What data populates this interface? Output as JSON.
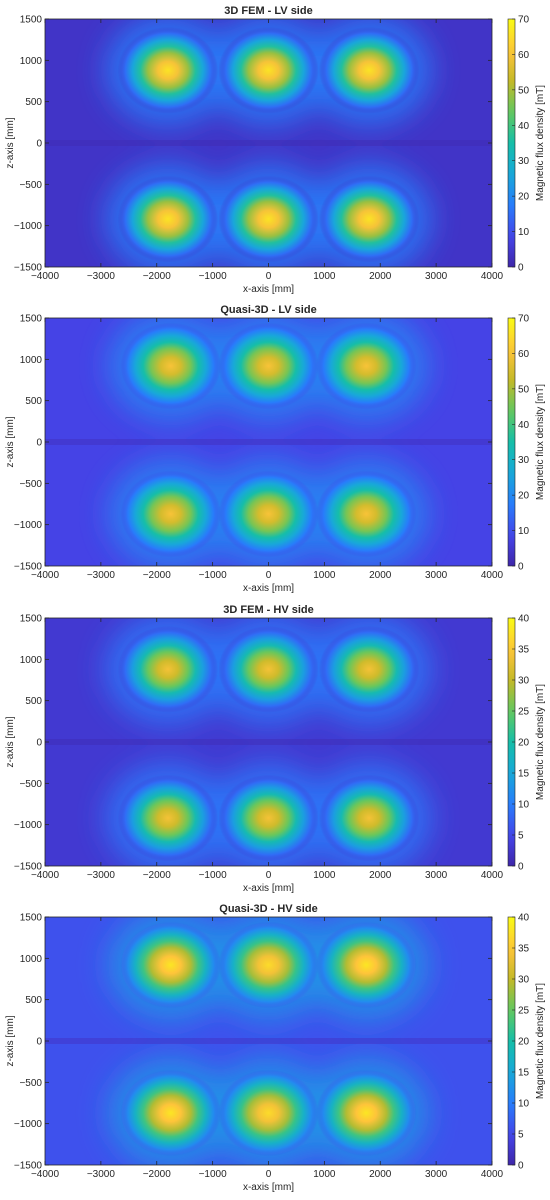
{
  "chart_data": [
    {
      "type": "heatmap",
      "title": "3D FEM - LV side",
      "xlabel": "x-axis [mm]",
      "ylabel": "z-axis [mm]",
      "xlim": [
        -4000,
        4000
      ],
      "ylim": [
        -1500,
        1500
      ],
      "xticks": [
        -4000,
        -3000,
        -2000,
        -1000,
        0,
        1000,
        2000,
        3000,
        4000
      ],
      "yticks": [
        -1500,
        -1000,
        -500,
        0,
        500,
        1000,
        1500
      ],
      "colorbar": {
        "label": "Magnetic flux density [mT]",
        "min": 0,
        "max": 70,
        "ticks": [
          0,
          10,
          20,
          30,
          40,
          50,
          60,
          70
        ]
      },
      "colormap": "parula",
      "hotspots": [
        {
          "x": -1800,
          "z": 880,
          "peak": 66
        },
        {
          "x": 0,
          "z": 880,
          "peak": 66
        },
        {
          "x": 1800,
          "z": 880,
          "peak": 66
        },
        {
          "x": -1800,
          "z": -920,
          "peak": 66
        },
        {
          "x": 0,
          "z": -920,
          "peak": 66
        },
        {
          "x": 1800,
          "z": -920,
          "peak": 66
        }
      ],
      "background_value": 4
    },
    {
      "type": "heatmap",
      "title": "Quasi-3D - LV side",
      "xlabel": "x-axis [mm]",
      "ylabel": "z-axis [mm]",
      "xlim": [
        -4000,
        4000
      ],
      "ylim": [
        -1500,
        1500
      ],
      "xticks": [
        -4000,
        -3000,
        -2000,
        -1000,
        0,
        1000,
        2000,
        3000,
        4000
      ],
      "yticks": [
        -1500,
        -1000,
        -500,
        0,
        500,
        1000,
        1500
      ],
      "colorbar": {
        "label": "Magnetic flux density [mT]",
        "min": 0,
        "max": 70,
        "ticks": [
          0,
          10,
          20,
          30,
          40,
          50,
          60,
          70
        ]
      },
      "colormap": "parula",
      "hotspots": [
        {
          "x": -1750,
          "z": 920,
          "peak": 60
        },
        {
          "x": 0,
          "z": 920,
          "peak": 60
        },
        {
          "x": 1750,
          "z": 920,
          "peak": 60
        },
        {
          "x": -1750,
          "z": -870,
          "peak": 60
        },
        {
          "x": 0,
          "z": -870,
          "peak": 60
        },
        {
          "x": 1750,
          "z": -870,
          "peak": 60
        }
      ],
      "background_value": 8
    },
    {
      "type": "heatmap",
      "title": "3D FEM - HV side",
      "xlabel": "x-axis [mm]",
      "ylabel": "z-axis [mm]",
      "xlim": [
        -4000,
        4000
      ],
      "ylim": [
        -1500,
        1500
      ],
      "xticks": [
        -4000,
        -3000,
        -2000,
        -1000,
        0,
        1000,
        2000,
        3000,
        4000
      ],
      "yticks": [
        -1500,
        -1000,
        -500,
        0,
        500,
        1000,
        1500
      ],
      "colorbar": {
        "label": "Magnetic flux density [mT]",
        "min": 0,
        "max": 40,
        "ticks": [
          0,
          5,
          10,
          15,
          20,
          25,
          30,
          35,
          40
        ]
      },
      "colormap": "parula",
      "hotspots": [
        {
          "x": -1800,
          "z": 880,
          "peak": 34
        },
        {
          "x": 0,
          "z": 880,
          "peak": 34
        },
        {
          "x": 1800,
          "z": 880,
          "peak": 34
        },
        {
          "x": -1800,
          "z": -920,
          "peak": 34
        },
        {
          "x": 0,
          "z": -920,
          "peak": 34
        },
        {
          "x": 1800,
          "z": -920,
          "peak": 34
        }
      ],
      "background_value": 3
    },
    {
      "type": "heatmap",
      "title": "Quasi-3D - HV side",
      "xlabel": "x-axis [mm]",
      "ylabel": "z-axis [mm]",
      "xlim": [
        -4000,
        4000
      ],
      "ylim": [
        -1500,
        1500
      ],
      "xticks": [
        -4000,
        -3000,
        -2000,
        -1000,
        0,
        1000,
        2000,
        3000,
        4000
      ],
      "yticks": [
        -1500,
        -1000,
        -500,
        0,
        500,
        1000,
        1500
      ],
      "colorbar": {
        "label": "Magnetic flux density [mT]",
        "min": 0,
        "max": 40,
        "ticks": [
          0,
          5,
          10,
          15,
          20,
          25,
          30,
          35,
          40
        ]
      },
      "colormap": "parula",
      "hotspots": [
        {
          "x": -1750,
          "z": 920,
          "peak": 38
        },
        {
          "x": 0,
          "z": 920,
          "peak": 37
        },
        {
          "x": 1750,
          "z": 920,
          "peak": 38
        },
        {
          "x": -1750,
          "z": -870,
          "peak": 38
        },
        {
          "x": 0,
          "z": -870,
          "peak": 37
        },
        {
          "x": 1750,
          "z": -870,
          "peak": 38
        }
      ],
      "background_value": 6
    }
  ]
}
